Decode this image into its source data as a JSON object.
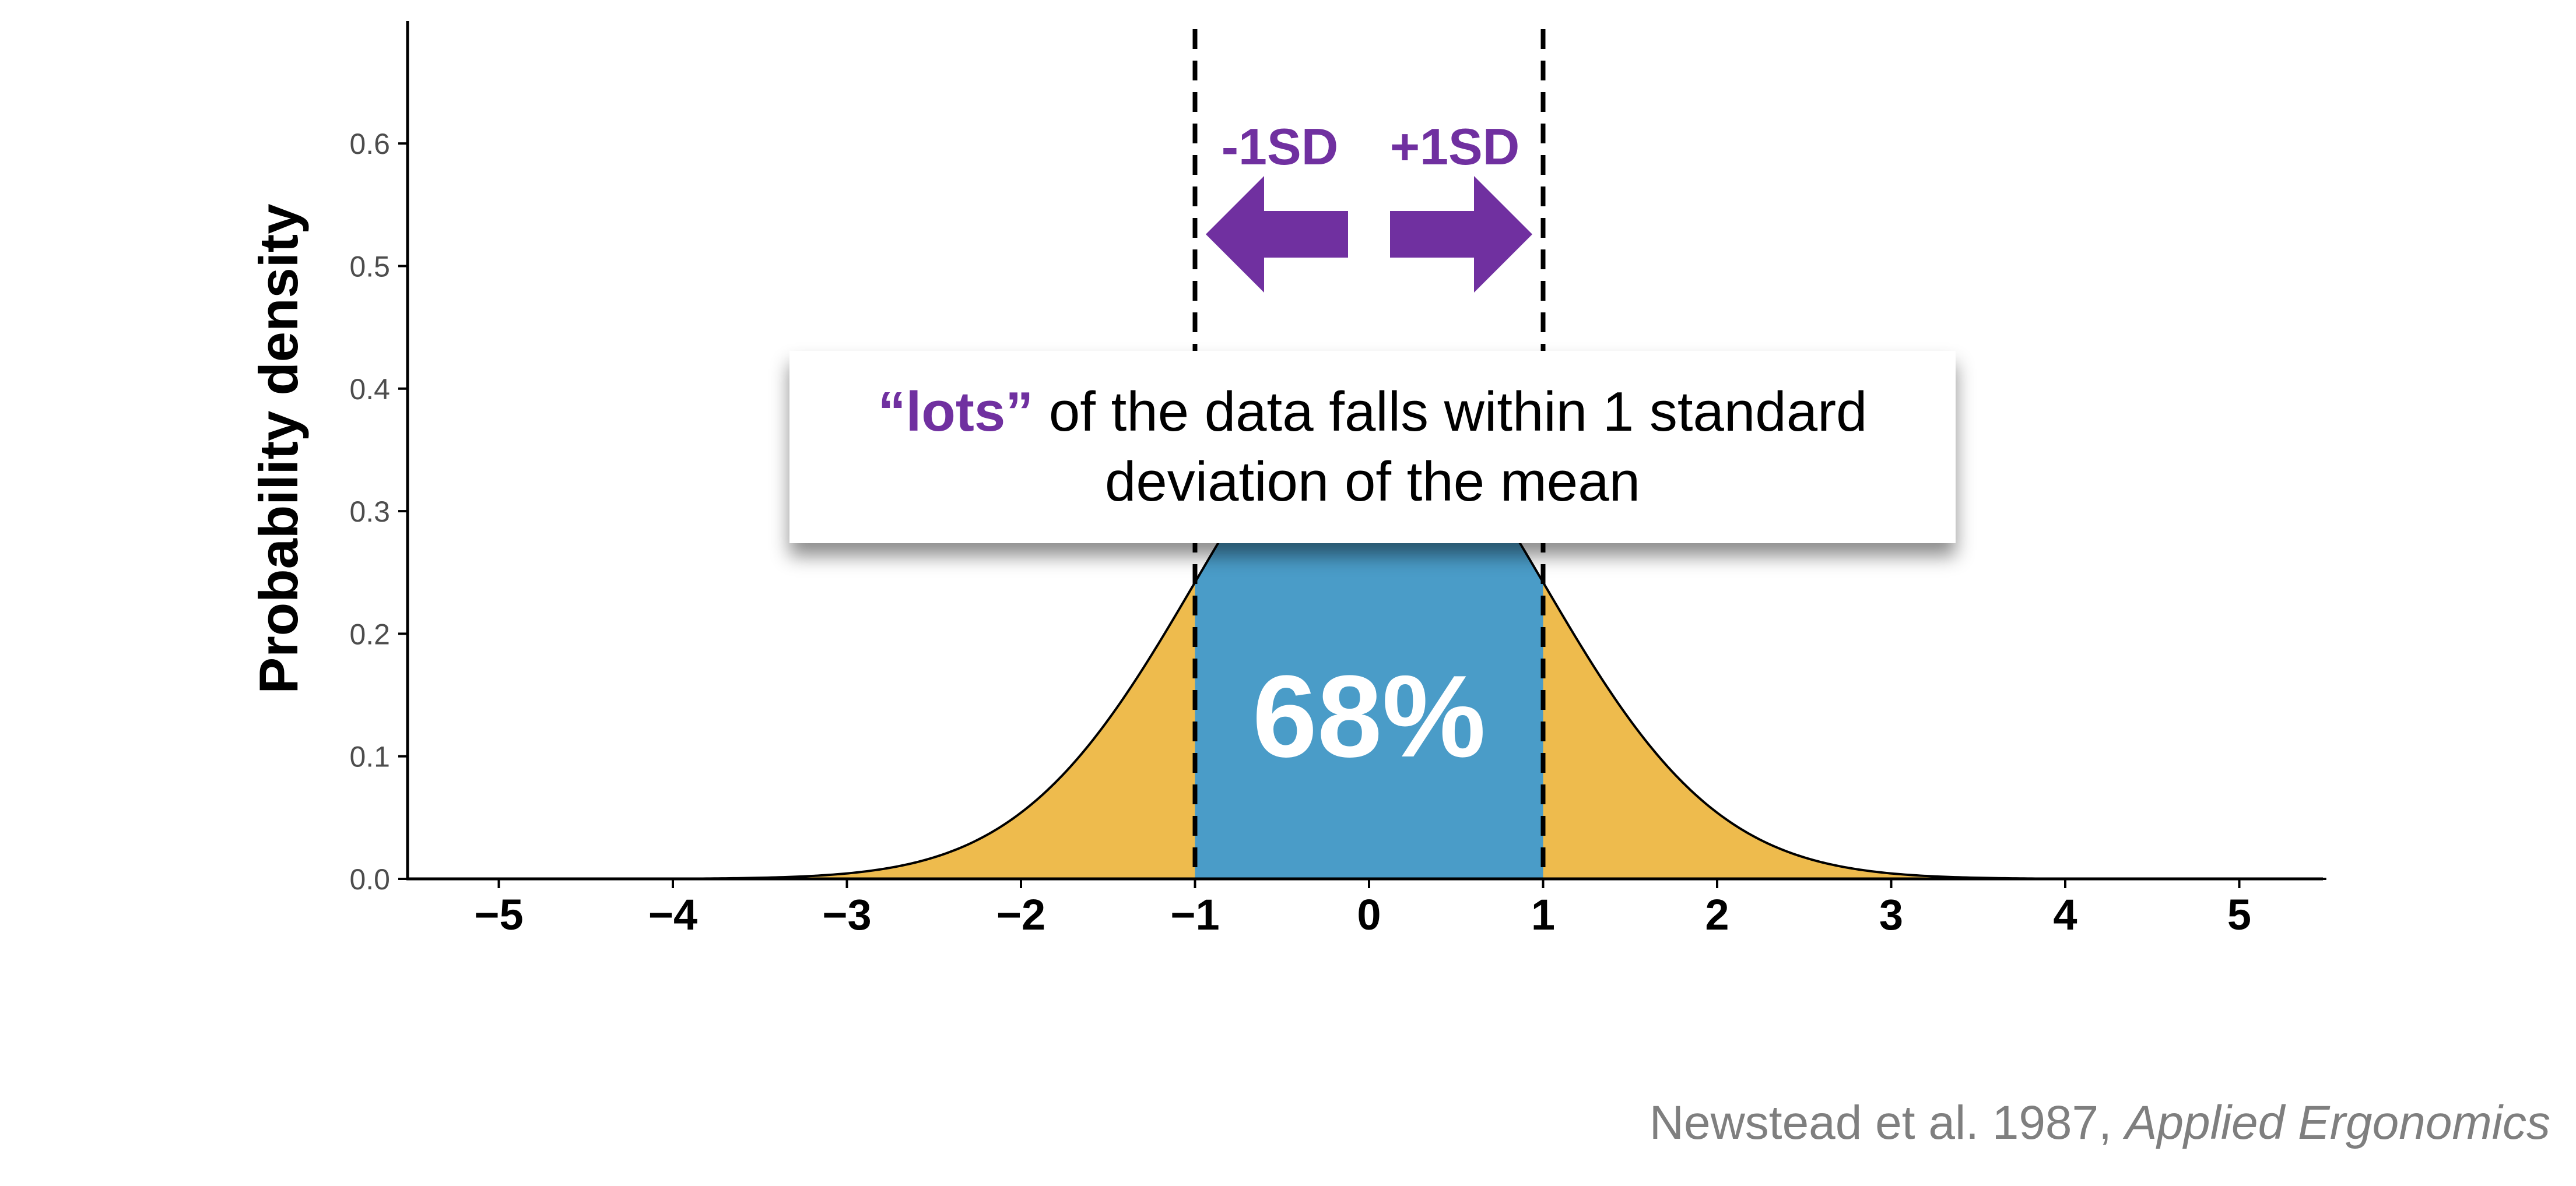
{
  "chart_data": {
    "type": "area",
    "distribution": "standard normal",
    "x_range": [
      -5.5,
      5.5
    ],
    "ylim": [
      0,
      0.7
    ],
    "x_ticks": [
      "−5",
      "−4",
      "−3",
      "−2",
      "−1",
      "0",
      "1",
      "2",
      "3",
      "4",
      "5"
    ],
    "y_ticks": [
      "0.0",
      "0.1",
      "0.2",
      "0.3",
      "0.4",
      "0.5",
      "0.6"
    ],
    "ylabel": "Probability density",
    "xlabel": "",
    "shaded_regions": [
      {
        "from": -5.5,
        "to": -1,
        "color": "#EEBB4D"
      },
      {
        "from": -1,
        "to": 1,
        "color": "#4A9CC8"
      },
      {
        "from": 1,
        "to": 5.5,
        "color": "#EEBB4D"
      }
    ],
    "reference_lines": [
      -1,
      1
    ],
    "annotations": {
      "minus_sd": "-1SD",
      "plus_sd": "+1SD",
      "center_percent": "68%"
    },
    "colors": {
      "tails": "#EEBB4D",
      "center": "#4A9CC8",
      "accent": "#7030A0"
    }
  },
  "callout": {
    "highlight": "“lots”",
    "line1": " of the data falls within 1 standard",
    "line2": "deviation of the mean"
  },
  "citation": {
    "text": "Newstead et al. 1987, ",
    "journal": "Applied Ergonomics"
  }
}
